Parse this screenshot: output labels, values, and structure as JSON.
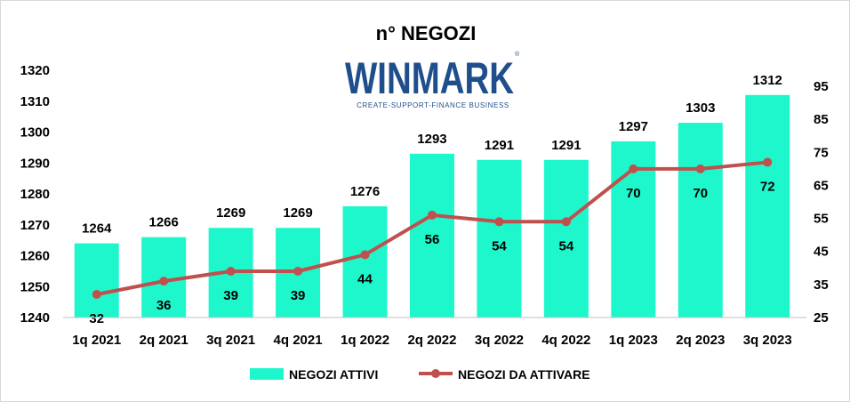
{
  "chart_data": {
    "type": "bar+line",
    "title": "n° NEGOZI",
    "categories": [
      "1q 2021",
      "2q 2021",
      "3q 2021",
      "4q 2021",
      "1q 2022",
      "2q 2022",
      "3q 2022",
      "4q 2022",
      "1q 2023",
      "2q 2023",
      "3q 2023"
    ],
    "series": [
      {
        "name": "NEGOZI ATTIVI",
        "type": "bar",
        "axis": "left",
        "color": "#1ef7cc",
        "values": [
          1264,
          1266,
          1269,
          1269,
          1276,
          1293,
          1291,
          1291,
          1297,
          1303,
          1312
        ]
      },
      {
        "name": "NEGOZI DA ATTIVARE",
        "type": "line",
        "axis": "right",
        "color": "#c0504d",
        "values": [
          32,
          36,
          39,
          39,
          44,
          56,
          54,
          54,
          70,
          70,
          72
        ]
      }
    ],
    "y_left": {
      "min": 1240,
      "max": 1320,
      "ticks": [
        1240,
        1250,
        1260,
        1270,
        1280,
        1290,
        1300,
        1310,
        1320
      ]
    },
    "y_right": {
      "min": 25,
      "max": 95,
      "ticks": [
        25,
        35,
        45,
        55,
        65,
        75,
        85,
        95
      ]
    },
    "legend_position": "bottom",
    "grid": false
  },
  "logo": {
    "name": "WINMARK",
    "tagline": "CREATE-SUPPORT-FINANCE BUSINESS",
    "mark": "®"
  }
}
